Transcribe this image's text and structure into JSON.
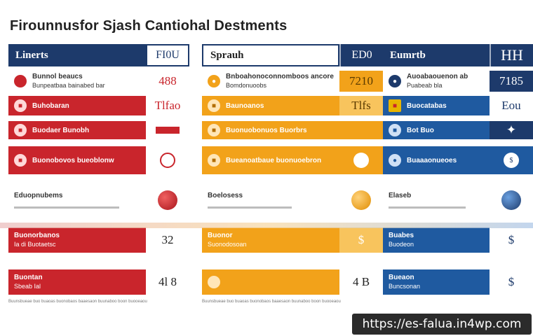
{
  "title": "Firounnusfor Sjash Cantiohal Destments",
  "columns": [
    {
      "header": "Linerts",
      "side": "FI0U",
      "rows": [
        {
          "title": "Bunnol beaucs",
          "sub": "Bunpeatbaa bainabed bar",
          "side": "488"
        },
        {
          "title": "Buhobaran",
          "sub": "",
          "side": "Tlfao"
        },
        {
          "title": "Buodaer Bunobh",
          "sub": "",
          "side": ""
        },
        {
          "title": "Buonobovos bueoblonw",
          "sub": "",
          "side": ""
        },
        {
          "title": "Eduopnubems",
          "sub": "",
          "side": ""
        },
        {
          "title": "Buonorbanos",
          "sub": "Ia di Buotaetsc",
          "side": "32"
        },
        {
          "title": "Buontan",
          "sub": "Sbeab Ial",
          "side": "4l 8"
        }
      ]
    },
    {
      "header": "Sprauh",
      "side": "ED0",
      "rows": [
        {
          "title": "Bnboahonoconnomboos ancore",
          "sub": "Bomdonuoobs",
          "side": "7210"
        },
        {
          "title": "Baunoanos",
          "sub": "",
          "side": "Tlfs"
        },
        {
          "title": "Buonuobonuos Buorbrs",
          "sub": "",
          "side": ""
        },
        {
          "title": "Bueanoatbaue buonuoebron",
          "sub": "",
          "side": ""
        },
        {
          "title": "Boelosess",
          "sub": "",
          "side": ""
        },
        {
          "title": "Buonor",
          "sub": "Suonodosoan",
          "side": "$"
        },
        {
          "title": "",
          "sub": "",
          "side": "4 B"
        }
      ]
    },
    {
      "header": "Eumrtb",
      "side": "HH",
      "rows": [
        {
          "title": "Auoabaouenon ab",
          "sub": "Puabeab bla",
          "side": "7185"
        },
        {
          "title": "Buocatabas",
          "sub": "",
          "side": "Eou"
        },
        {
          "title": "Bot Buo",
          "sub": "",
          "side": ""
        },
        {
          "title": "Buaaaonueoes",
          "sub": "",
          "side": ""
        },
        {
          "title": "Elaseb",
          "sub": "",
          "side": ""
        },
        {
          "title": "Buabes",
          "sub": "Buodeon",
          "side": "$"
        },
        {
          "title": "Bueaon",
          "sub": "Buncsonan",
          "side": "$"
        }
      ]
    }
  ],
  "fine_print": "Buunsbueae buo buaoas buonobaos baaesaon buunaboo boon buooeaou",
  "url": "https://es-falua.in4wp.com",
  "colors": {
    "red": "#c9252c",
    "orange": "#f2a21a",
    "blue": "#1f5aa0",
    "navy": "#1d3a6b"
  }
}
